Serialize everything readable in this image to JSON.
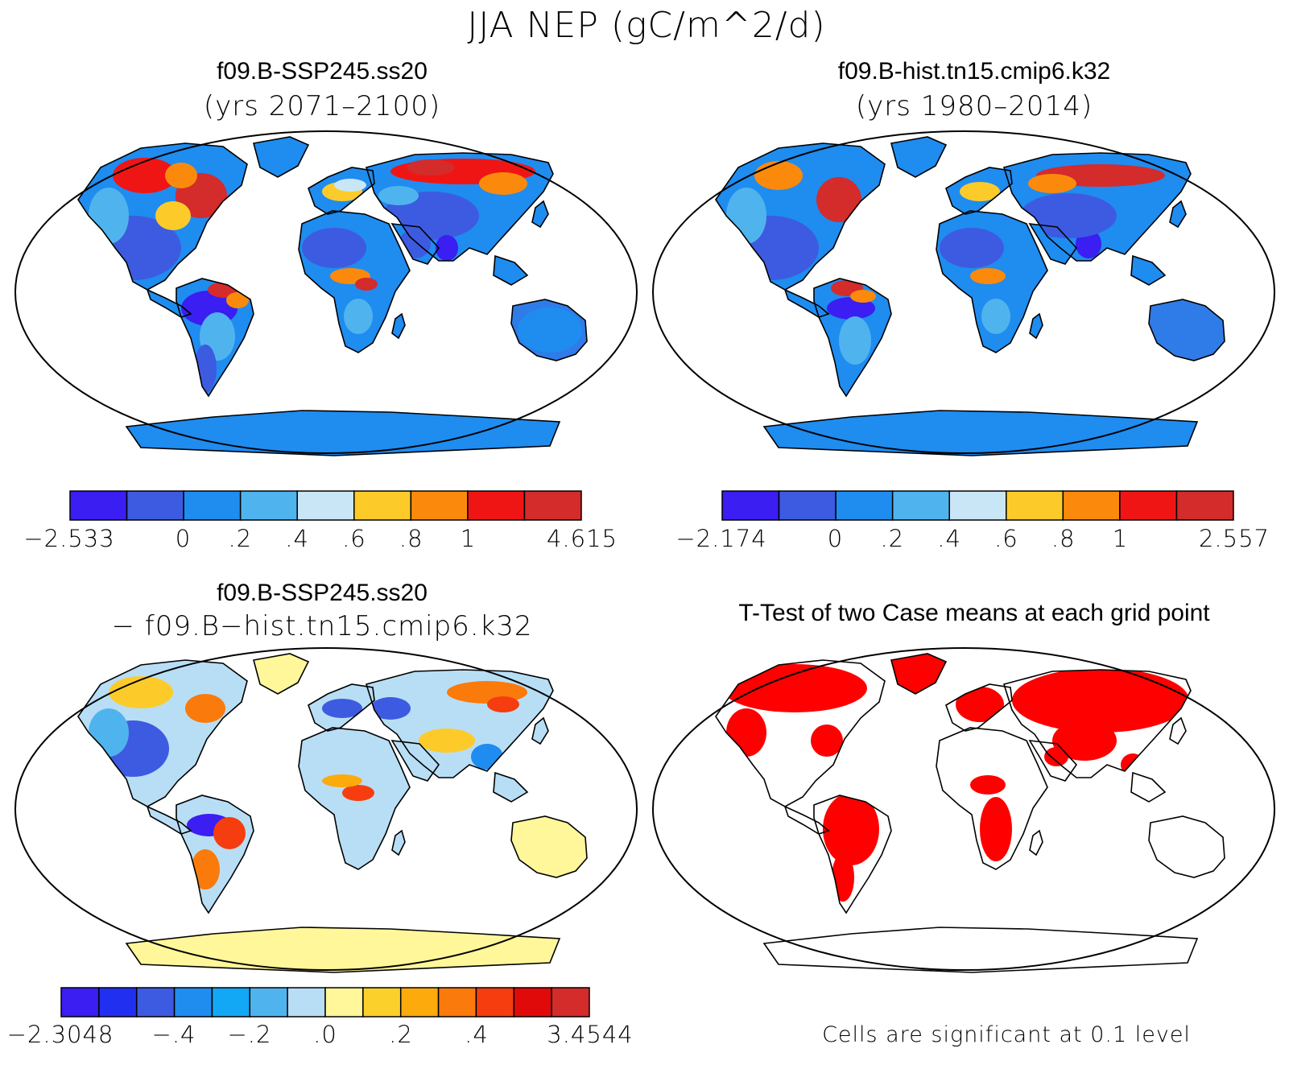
{
  "figure": {
    "title": "JJA NEP (gC/m^2/d)",
    "footnote": "Cells are significant at 0.1 level"
  },
  "panels": {
    "p1": {
      "title_line1": "f09.B-SSP245.ss20",
      "title_line2": "(yrs 2071–2100)",
      "colorbar": {
        "colors": [
          "#3a1ef2",
          "#3d5be0",
          "#1f8cf0",
          "#4fb4ee",
          "#c9e6f7",
          "#fccb2a",
          "#fb8a0c",
          "#f01515",
          "#d42b2b"
        ],
        "labels": [
          "−2.533",
          "0",
          ".2",
          ".4",
          ".6",
          ".8",
          "1",
          "4.615"
        ]
      }
    },
    "p2": {
      "title_line1": "f09.B-hist.tn15.cmip6.k32",
      "title_line2": "(yrs 1980–2014)",
      "colorbar": {
        "colors": [
          "#3a1ef2",
          "#3d5be0",
          "#1f8cf0",
          "#4fb4ee",
          "#c9e6f7",
          "#fccb2a",
          "#fb8a0c",
          "#f01515",
          "#d42b2b"
        ],
        "labels": [
          "−2.174",
          "0",
          ".2",
          ".4",
          ".6",
          ".8",
          "1",
          "2.557"
        ]
      }
    },
    "p3": {
      "title_line1": "f09.B-SSP245.ss20",
      "title_line2": "− f09.B−hist.tn15.cmip6.k32",
      "colorbar": {
        "colors": [
          "#3a1ef2",
          "#2130f0",
          "#3d5be0",
          "#1f8cf0",
          "#12a8f5",
          "#4fb4ee",
          "#b8def5",
          "#fff79a",
          "#fcd02a",
          "#fcaa0c",
          "#fb7a0c",
          "#f53d10",
          "#e00a0a",
          "#d42b2b"
        ],
        "labels": [
          "−2.3048",
          "−.4",
          "−.2",
          ".0",
          ".2",
          ".4",
          "3.4544"
        ]
      }
    },
    "p4": {
      "title_line1": "T-Test of two Case means at each grid point"
    }
  }
}
